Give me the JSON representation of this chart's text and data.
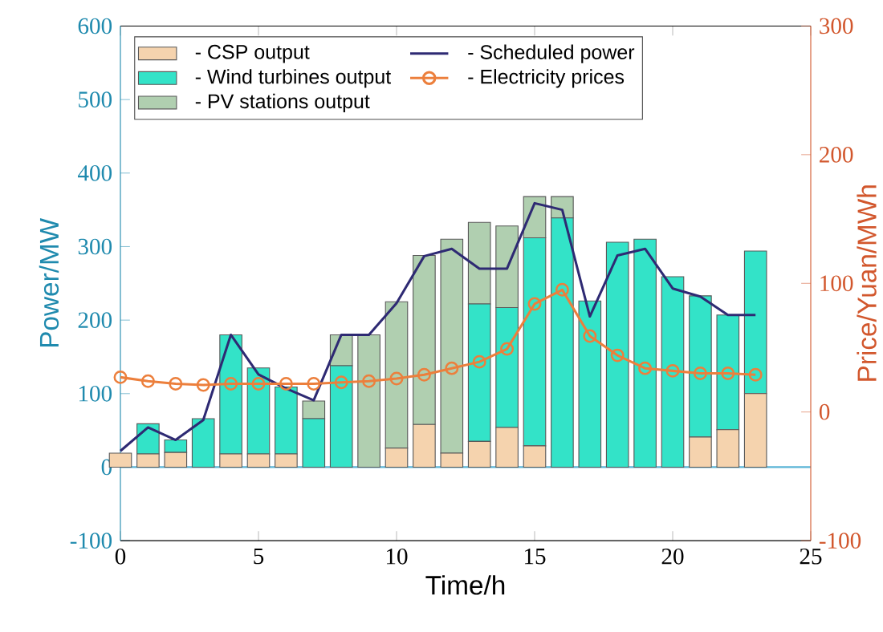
{
  "chart_data": {
    "type": "bar",
    "stacked": true,
    "xlabel": "Time/h",
    "ylabel": "Power/MW",
    "y2label": "Price/Yuan/MWh",
    "x": [
      0,
      1,
      2,
      3,
      4,
      5,
      6,
      7,
      8,
      9,
      10,
      11,
      12,
      13,
      14,
      15,
      16,
      17,
      18,
      19,
      20,
      21,
      22,
      23
    ],
    "xlim": [
      0,
      25
    ],
    "xticks": [
      0,
      5,
      10,
      15,
      20,
      25
    ],
    "ylim": [
      -100,
      600
    ],
    "yticks": [
      -100,
      0,
      100,
      200,
      300,
      400,
      500,
      600
    ],
    "y2lim": [
      -100,
      300
    ],
    "y2ticks": [
      -100,
      0,
      100,
      200,
      300
    ],
    "legend": "top left",
    "grid": false,
    "ref_lines": [
      {
        "axis": "y",
        "value": 0,
        "color": "#5ab4d6"
      }
    ],
    "series": [
      {
        "name": "- CSP output",
        "color": "#f5d3ae",
        "values": [
          19,
          18,
          20,
          0,
          18,
          18,
          18,
          0,
          0,
          0,
          26,
          58,
          19,
          35,
          54,
          29,
          0,
          0,
          0,
          0,
          0,
          41,
          51,
          100
        ]
      },
      {
        "name": "- Wind turbines output",
        "color": "#33e3c8",
        "values": [
          0,
          41,
          17,
          66,
          162,
          117,
          91,
          66,
          138,
          0,
          0,
          0,
          0,
          187,
          163,
          283,
          339,
          226,
          306,
          310,
          259,
          192,
          156,
          194
        ]
      },
      {
        "name": "- PV stations output",
        "color": "#b0cfb0",
        "values": [
          0,
          0,
          0,
          0,
          0,
          0,
          0,
          24,
          42,
          180,
          199,
          230,
          291,
          111,
          111,
          56,
          29,
          0,
          0,
          0,
          0,
          0,
          0,
          0
        ]
      },
      {
        "name": "- Scheduled power",
        "type": "line",
        "color": "#2e2a73",
        "marker": "none",
        "values": [
          22,
          54,
          37,
          64,
          180,
          126,
          107,
          91,
          180,
          180,
          223,
          287,
          297,
          270,
          270,
          359,
          350,
          205,
          288,
          297,
          243,
          232,
          207,
          207
        ]
      },
      {
        "name": "- Electricity prices",
        "type": "line",
        "axis": "y2",
        "color": "#ec7f3c",
        "marker": "circle",
        "values": [
          27,
          24,
          22,
          21,
          22,
          22,
          22,
          22,
          23,
          24,
          26,
          29,
          34,
          39,
          49,
          84,
          95,
          59,
          44,
          34,
          32,
          30,
          30,
          29
        ]
      }
    ]
  }
}
